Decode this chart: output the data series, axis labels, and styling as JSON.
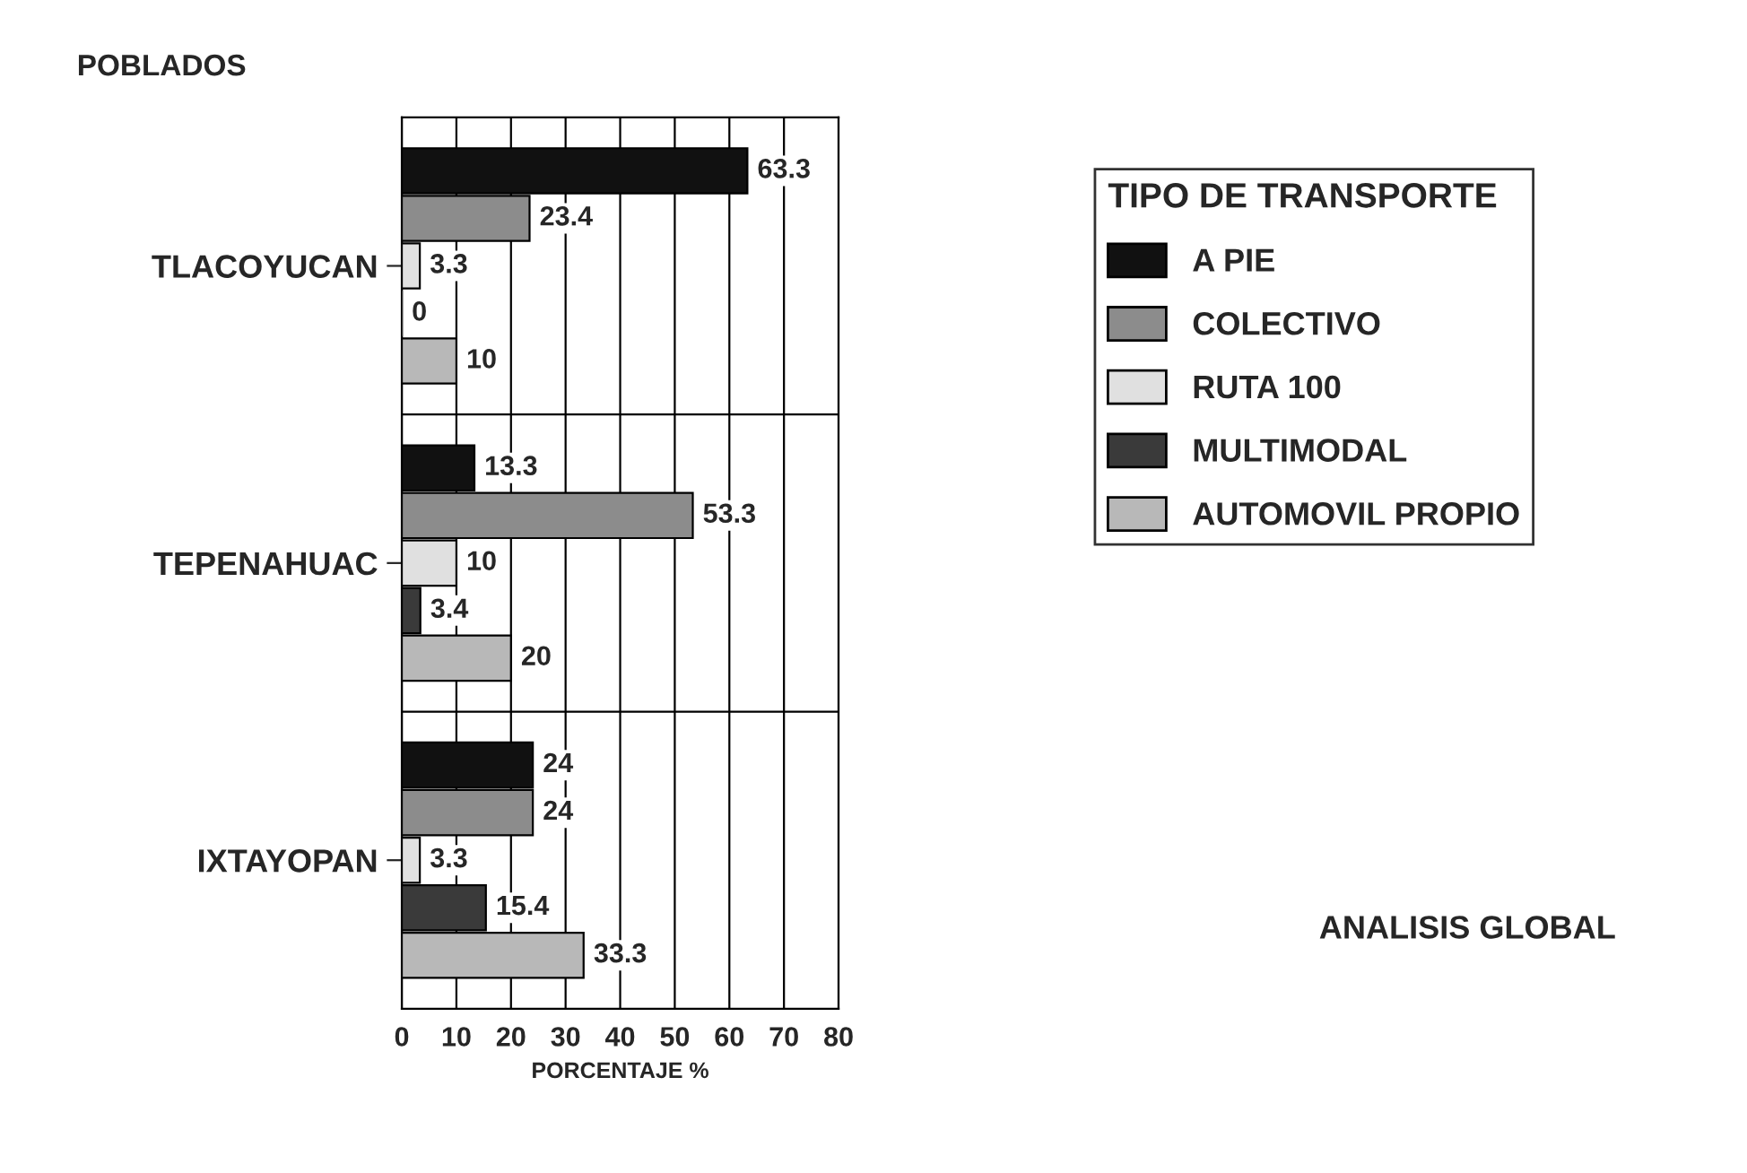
{
  "chart_data": {
    "type": "bar",
    "orientation": "horizontal",
    "ylabel": "POBLADOS",
    "xlabel": "PORCENTAJE %",
    "legend_title": "TIPO DE TRANSPORTE",
    "annotations": [
      "ANALISIS GLOBAL"
    ],
    "categories": [
      "TLACOYUCAN",
      "TEPENAHUAC",
      "IXTAYOPAN"
    ],
    "series": [
      {
        "name": "A PIE",
        "color": "#111111",
        "values": [
          63.3,
          13.3,
          24
        ]
      },
      {
        "name": "COLECTIVO",
        "color": "#8c8c8c",
        "values": [
          23.4,
          53.3,
          24
        ]
      },
      {
        "name": "RUTA 100",
        "color": "#e0e0e0",
        "values": [
          3.3,
          10,
          3.3
        ]
      },
      {
        "name": "MULTIMODAL",
        "color": "#3a3a3a",
        "values": [
          0,
          3.4,
          15.4
        ]
      },
      {
        "name": "AUTOMOVIL PROPIO",
        "color": "#b8b8b8",
        "values": [
          10,
          20,
          33.3
        ]
      }
    ],
    "xlim": [
      0,
      80
    ],
    "xticks": [
      0,
      10,
      20,
      30,
      40,
      50,
      60,
      70,
      80
    ],
    "grid": "x",
    "legend": "right",
    "data_labels": true
  }
}
